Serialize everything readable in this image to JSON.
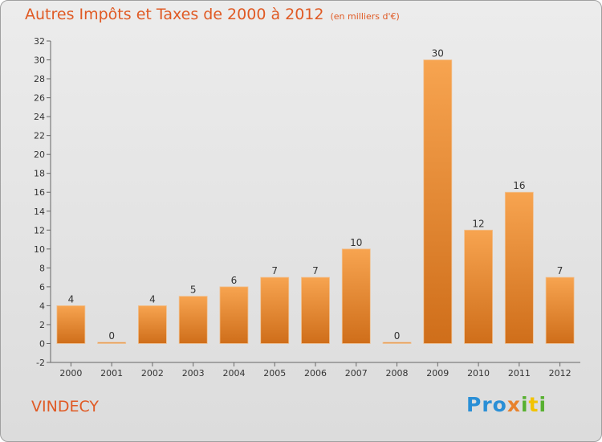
{
  "title": "Autres Impôts et Taxes de 2000 à 2012",
  "subtitle": "(en milliers d'€)",
  "commune": "VINDECY",
  "logo": {
    "p1": "Pro",
    "p2": "x",
    "p3": "i",
    "p4": "t",
    "p5": "i"
  },
  "colors": {
    "bar_light": "#f7a450",
    "bar_dark": "#cf6e1a",
    "title": "#e05a24"
  },
  "chart_data": {
    "type": "bar",
    "categories": [
      "2000",
      "2001",
      "2002",
      "2003",
      "2004",
      "2005",
      "2006",
      "2007",
      "2008",
      "2009",
      "2010",
      "2011",
      "2012"
    ],
    "values": [
      4,
      0,
      4,
      5,
      6,
      7,
      7,
      10,
      0,
      30,
      12,
      16,
      7
    ],
    "ylim": [
      -2,
      32
    ],
    "yticks": [
      -2,
      0,
      2,
      4,
      6,
      8,
      10,
      12,
      14,
      16,
      18,
      20,
      22,
      24,
      26,
      28,
      30,
      32
    ],
    "xlabel": "",
    "ylabel": "",
    "grid": false
  }
}
